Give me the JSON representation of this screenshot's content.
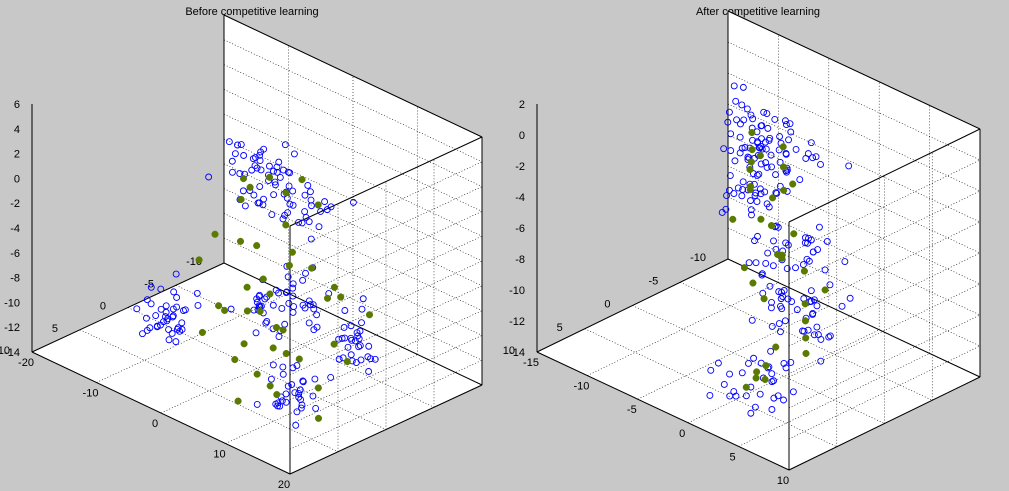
{
  "figure": {
    "background": "#c8c8c8"
  },
  "chart_data": [
    {
      "type": "scatter3d",
      "title": "Before competitive learning",
      "xlabel": "",
      "ylabel": "",
      "zlabel": "",
      "xlim": [
        -10,
        10
      ],
      "ylim": [
        -20,
        20
      ],
      "zlim": [
        -14,
        6
      ],
      "xticks": [
        "10",
        "5",
        "0",
        "-5",
        "-10"
      ],
      "yticks": [
        "-20",
        "-10",
        "0",
        "10",
        "20"
      ],
      "zticks": [
        "6",
        "4",
        "2",
        "0",
        "-2",
        "-4",
        "-6",
        "-8",
        "-10",
        "-12",
        "-14"
      ],
      "grid": true,
      "series": [
        {
          "marker": "open-circle",
          "color": "#0000ff",
          "clusters": [
            {
              "center": [
                -5.5,
                -8,
                -2
              ],
              "spread": [
                1.4,
                2.6,
                1.3
              ],
              "count": 40
            },
            {
              "center": [
                -2,
                3,
                -1
              ],
              "spread": [
                1.6,
                2.5,
                1.2
              ],
              "count": 35
            },
            {
              "center": [
                4,
                -8,
                -10
              ],
              "spread": [
                1.3,
                2.2,
                1.0
              ],
              "count": 40
            },
            {
              "center": [
                -2,
                1,
                -9
              ],
              "spread": [
                1.8,
                3.0,
                1.1
              ],
              "count": 45
            },
            {
              "center": [
                -1,
                12,
                -9
              ],
              "spread": [
                1.3,
                2.2,
                1.4
              ],
              "count": 35
            },
            {
              "center": [
                3,
                10,
                -13
              ],
              "spread": [
                1.3,
                2.0,
                1.2
              ],
              "count": 32
            }
          ]
        },
        {
          "marker": "filled-circle",
          "color": "#5a7a00",
          "points": [
            [
              -2,
              4,
              1.5
            ],
            [
              -1,
              8,
              0.8
            ],
            [
              1,
              6,
              2.0
            ],
            [
              3,
              2,
              1.2
            ],
            [
              -4,
              -4,
              -1.0
            ],
            [
              -6,
              -10,
              -4.0
            ],
            [
              -8,
              -14,
              -5.0
            ],
            [
              -3,
              0,
              -3.5
            ],
            [
              -1,
              4,
              -4.0
            ],
            [
              2,
              8,
              -3.0
            ],
            [
              0,
              12,
              -4.5
            ],
            [
              -4,
              -6,
              -7.0
            ],
            [
              -2,
              -2,
              -8.0
            ],
            [
              0,
              2,
              -7.5
            ],
            [
              2,
              6,
              -8.5
            ],
            [
              4,
              10,
              -7.0
            ],
            [
              -3,
              -6,
              -10.0
            ],
            [
              -1,
              -1,
              -10.0
            ],
            [
              1,
              4,
              -11.0
            ],
            [
              3,
              9,
              -9.5
            ],
            [
              5,
              14,
              -8.0
            ],
            [
              -2,
              -8,
              -12.0
            ],
            [
              0,
              -2,
              -12.5
            ],
            [
              2,
              3,
              -13.0
            ],
            [
              4,
              8,
              -12.0
            ],
            [
              6,
              12,
              -11.0
            ],
            [
              -5,
              -10,
              -8.0
            ],
            [
              -3,
              4,
              -6.0
            ],
            [
              1,
              0,
              -9.0
            ],
            [
              3,
              -4,
              -11.0
            ],
            [
              -6,
              2,
              -10.0
            ],
            [
              0,
              14,
              -10.0
            ],
            [
              5,
              4,
              -10.5
            ],
            [
              -2,
              10,
              -6.5
            ],
            [
              2,
              -6,
              -6.0
            ],
            [
              6,
              6,
              -13.0
            ],
            [
              -4,
              6,
              -12.0
            ],
            [
              1,
              11,
              -12.5
            ],
            [
              -1,
              -8,
              -5.5
            ],
            [
              3,
              14,
              -13.5
            ],
            [
              -5,
              10,
              -9.0
            ],
            [
              4,
              0,
              -7.5
            ]
          ]
        }
      ]
    },
    {
      "type": "scatter3d",
      "title": "After competitive learning",
      "xlabel": "",
      "ylabel": "",
      "zlabel": "",
      "xlim": [
        -10,
        10
      ],
      "ylim": [
        -15,
        10
      ],
      "zlim": [
        -14,
        2
      ],
      "xticks": [
        "10",
        "5",
        "0",
        "-5",
        "-10"
      ],
      "yticks": [
        "-15",
        "-10",
        "-5",
        "0",
        "5",
        "10"
      ],
      "zticks": [
        "2",
        "0",
        "-2",
        "-4",
        "-6",
        "-8",
        "-10",
        "-12",
        "-14"
      ],
      "grid": true,
      "series": [
        {
          "marker": "open-circle",
          "color": "#0000ff",
          "clusters": [
            {
              "center": [
                -6,
                -9,
                -6
              ],
              "spread": [
                1.2,
                1.6,
                1.2
              ],
              "count": 38
            },
            {
              "center": [
                -3,
                -6,
                -1
              ],
              "spread": [
                1.2,
                1.6,
                1.1
              ],
              "count": 35
            },
            {
              "center": [
                -1,
                -1,
                0
              ],
              "spread": [
                1.2,
                1.5,
                1.1
              ],
              "count": 35
            },
            {
              "center": [
                -3,
                -3,
                -8
              ],
              "spread": [
                1.4,
                1.6,
                1.0
              ],
              "count": 40
            },
            {
              "center": [
                3,
                5,
                -8
              ],
              "spread": [
                1.2,
                1.5,
                1.2
              ],
              "count": 36
            },
            {
              "center": [
                5,
                2,
                -12
              ],
              "spread": [
                1.2,
                1.5,
                1.2
              ],
              "count": 32
            }
          ]
        },
        {
          "marker": "filled-circle",
          "color": "#5a7a00",
          "points": [
            [
              -6,
              -9,
              -6.5
            ],
            [
              -5.5,
              -8.5,
              -6.0
            ],
            [
              -6.5,
              -9.5,
              -5.5
            ],
            [
              -3,
              -6,
              -1.0
            ],
            [
              -2.5,
              -5.5,
              -1.8
            ],
            [
              -1,
              -1,
              0.2
            ],
            [
              -0.5,
              -0.5,
              -0.8
            ],
            [
              -3,
              -3,
              -8.0
            ],
            [
              -2,
              -2.5,
              -7.5
            ],
            [
              -3.5,
              -3.5,
              -8.5
            ],
            [
              3,
              5,
              -8.0
            ],
            [
              2.5,
              4.5,
              -7.2
            ],
            [
              3.5,
              5.5,
              -8.8
            ],
            [
              5,
              2,
              -12.0
            ],
            [
              4.5,
              2.5,
              -11.2
            ],
            [
              5.5,
              1.5,
              -12.6
            ],
            [
              -4,
              -7,
              -3.5
            ],
            [
              -2,
              -3,
              -4.0
            ],
            [
              0,
              1,
              -4.5
            ],
            [
              1,
              3,
              -6.0
            ],
            [
              -1,
              -4,
              -9.5
            ],
            [
              1,
              -1,
              -9.0
            ],
            [
              4,
              3,
              -10.0
            ],
            [
              2,
              6,
              -6.0
            ],
            [
              -5,
              -7,
              -7.5
            ],
            [
              -4,
              -5,
              -7.0
            ],
            [
              -2,
              -1,
              -2.5
            ],
            [
              0,
              0,
              -2.0
            ],
            [
              4,
              6,
              -9.5
            ],
            [
              6,
              3,
              -11.0
            ],
            [
              3,
              1,
              -13.0
            ],
            [
              -6,
              -8,
              -4.0
            ],
            [
              -1,
              -6,
              -6.0
            ],
            [
              2,
              -2,
              -7.0
            ]
          ]
        }
      ]
    }
  ]
}
